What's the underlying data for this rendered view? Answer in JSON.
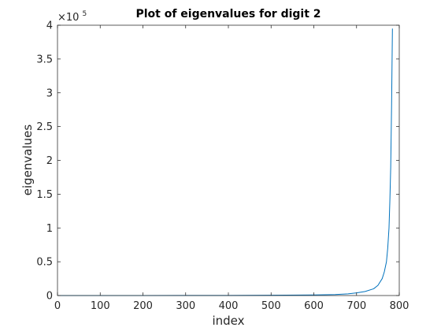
{
  "chart_data": {
    "type": "line",
    "title": "Plot of eigenvalues for digit 2",
    "xlabel": "index",
    "ylabel": "eigenvalues",
    "xlim": [
      0,
      800
    ],
    "ylim": [
      0,
      400000
    ],
    "xticks": [
      0,
      100,
      200,
      300,
      400,
      500,
      600,
      700,
      800
    ],
    "yticks": [
      0,
      50000,
      100000,
      150000,
      200000,
      250000,
      300000,
      350000,
      400000
    ],
    "yticklabels": [
      "0",
      "0.5",
      "1",
      "1.5",
      "2",
      "2.5",
      "3",
      "3.5",
      "4"
    ],
    "y_multiplier_base": "×10",
    "y_multiplier_exponent": "5",
    "grid": false,
    "series": [
      {
        "color": "#0072BD",
        "x": [
          1,
          100,
          200,
          300,
          400,
          500,
          600,
          650,
          680,
          700,
          720,
          740,
          750,
          760,
          765,
          770,
          773,
          776,
          778,
          780,
          782,
          784
        ],
        "y": [
          0,
          0,
          50,
          100,
          200,
          400,
          800,
          1500,
          2500,
          4000,
          6000,
          10000,
          15000,
          25000,
          35000,
          50000,
          70000,
          100000,
          140000,
          190000,
          280000,
          395000
        ]
      }
    ]
  }
}
